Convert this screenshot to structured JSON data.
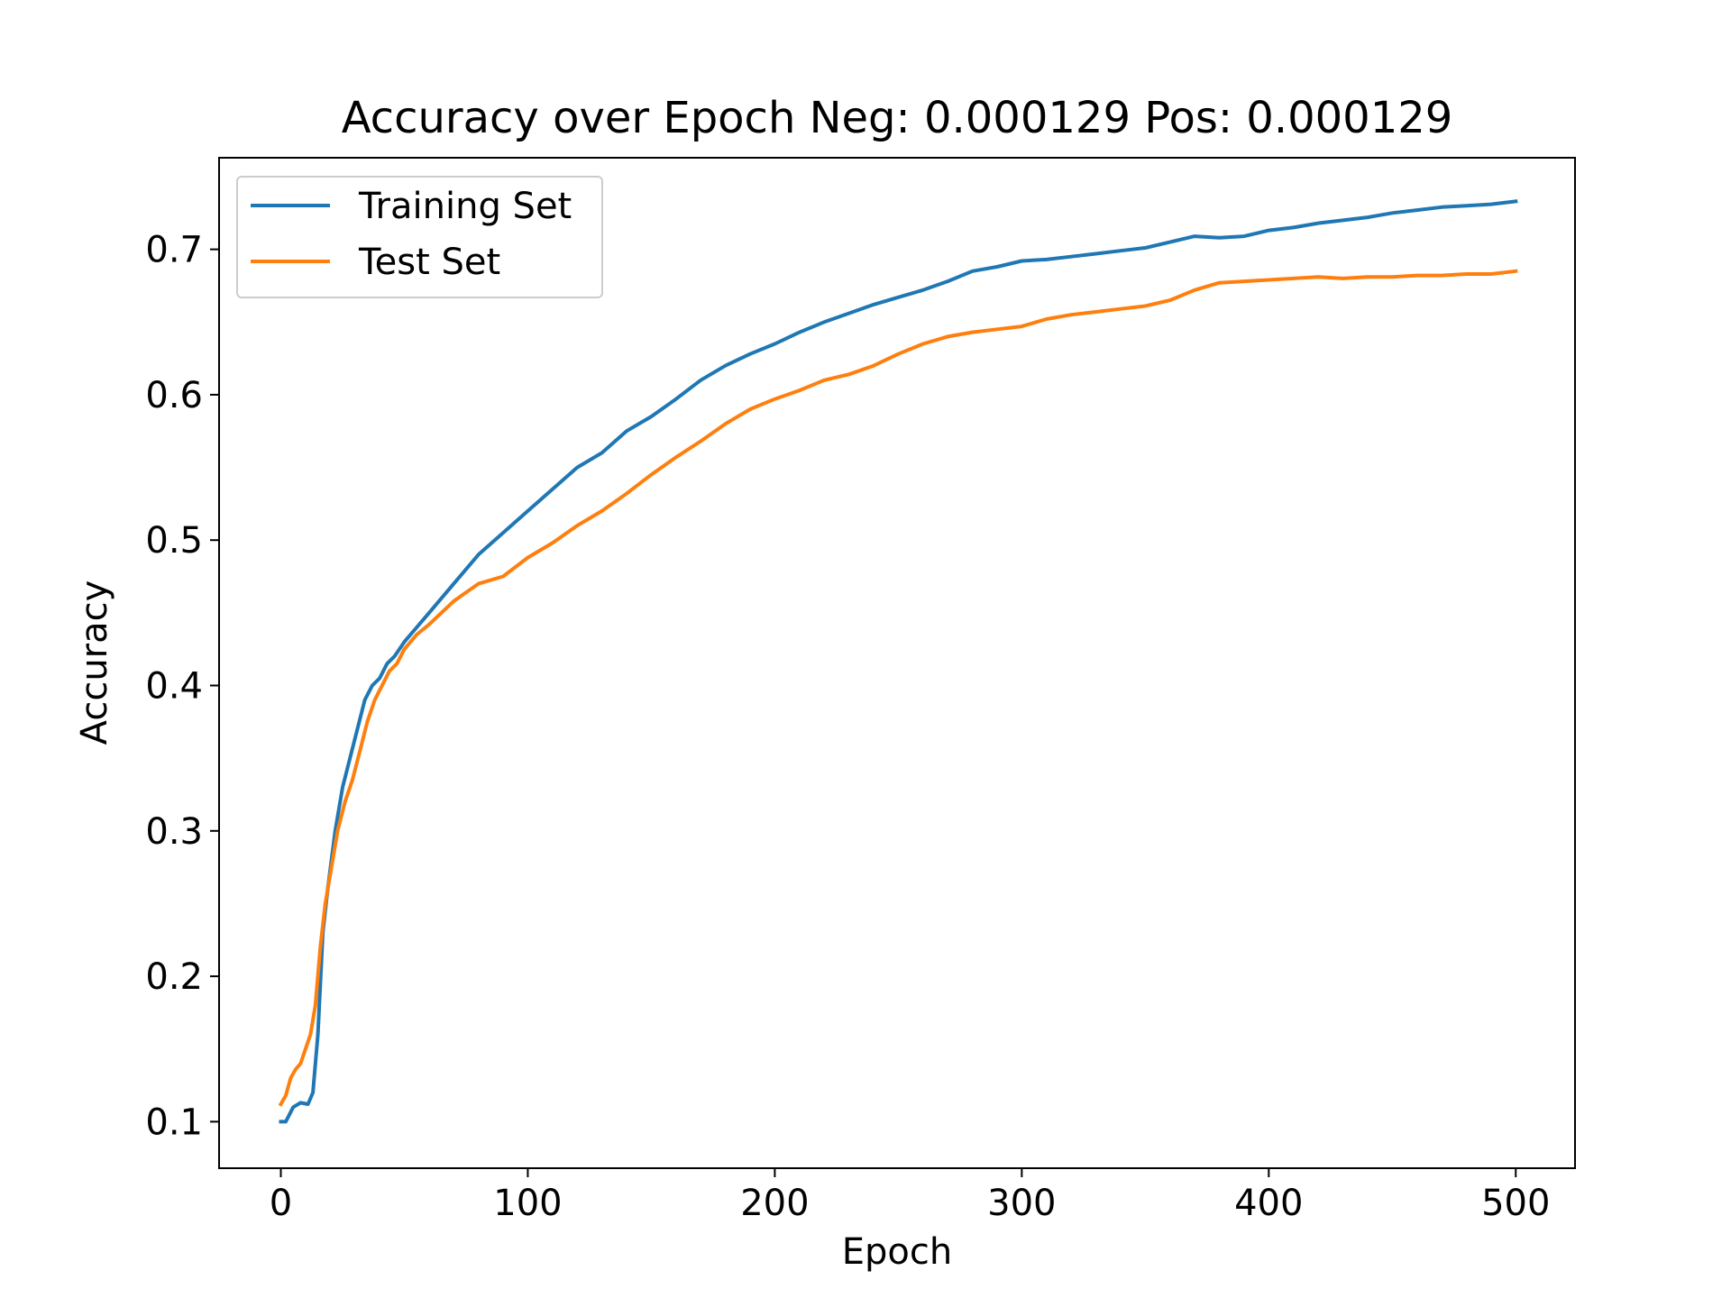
{
  "chart_data": {
    "type": "line",
    "title": "Accuracy over Epoch Neg: 0.000129 Pos: 0.000129",
    "xlabel": "Epoch",
    "ylabel": "Accuracy",
    "xlim": [
      -25,
      524
    ],
    "ylim": [
      0.068,
      0.763
    ],
    "x_ticks": [
      0,
      100,
      200,
      300,
      400,
      500
    ],
    "x_tick_labels": [
      "0",
      "100",
      "200",
      "300",
      "400",
      "500"
    ],
    "y_ticks": [
      0.1,
      0.2,
      0.3,
      0.4,
      0.5,
      0.6,
      0.7
    ],
    "y_tick_labels": [
      "0.1",
      "0.2",
      "0.3",
      "0.4",
      "0.5",
      "0.6",
      "0.7"
    ],
    "grid": false,
    "legend_position": "upper-left",
    "series": [
      {
        "name": "Training Set",
        "color": "#1f77b4",
        "x": [
          0,
          2,
          5,
          8,
          11,
          13,
          15,
          17,
          19,
          22,
          25,
          28,
          31,
          34,
          37,
          40,
          43,
          46,
          50,
          55,
          60,
          70,
          80,
          90,
          100,
          110,
          120,
          130,
          140,
          150,
          160,
          170,
          180,
          190,
          200,
          210,
          220,
          230,
          240,
          250,
          260,
          270,
          280,
          290,
          300,
          310,
          320,
          330,
          340,
          350,
          360,
          370,
          380,
          390,
          400,
          410,
          420,
          430,
          440,
          450,
          460,
          470,
          480,
          490,
          500
        ],
        "y": [
          0.1,
          0.1,
          0.11,
          0.113,
          0.112,
          0.12,
          0.16,
          0.23,
          0.26,
          0.3,
          0.33,
          0.35,
          0.37,
          0.39,
          0.4,
          0.405,
          0.415,
          0.42,
          0.43,
          0.44,
          0.45,
          0.47,
          0.49,
          0.505,
          0.52,
          0.535,
          0.55,
          0.56,
          0.575,
          0.585,
          0.597,
          0.61,
          0.62,
          0.628,
          0.635,
          0.643,
          0.65,
          0.656,
          0.662,
          0.667,
          0.672,
          0.678,
          0.685,
          0.688,
          0.692,
          0.693,
          0.695,
          0.697,
          0.699,
          0.701,
          0.705,
          0.709,
          0.708,
          0.709,
          0.713,
          0.715,
          0.718,
          0.72,
          0.722,
          0.725,
          0.727,
          0.729,
          0.73,
          0.731,
          0.733
        ]
      },
      {
        "name": "Test Set",
        "color": "#ff7f0e",
        "x": [
          0,
          2,
          4,
          6,
          8,
          10,
          12,
          14,
          16,
          18,
          20,
          23,
          26,
          29,
          32,
          35,
          38,
          41,
          44,
          47,
          50,
          55,
          60,
          70,
          80,
          90,
          100,
          110,
          120,
          130,
          140,
          150,
          160,
          170,
          180,
          190,
          200,
          210,
          220,
          230,
          240,
          250,
          260,
          270,
          280,
          290,
          300,
          310,
          320,
          330,
          340,
          350,
          360,
          370,
          380,
          390,
          400,
          410,
          420,
          430,
          440,
          450,
          460,
          470,
          480,
          490,
          500
        ],
        "y": [
          0.112,
          0.118,
          0.13,
          0.136,
          0.14,
          0.15,
          0.16,
          0.18,
          0.22,
          0.25,
          0.27,
          0.3,
          0.32,
          0.335,
          0.355,
          0.375,
          0.39,
          0.4,
          0.41,
          0.415,
          0.425,
          0.435,
          0.442,
          0.458,
          0.47,
          0.475,
          0.488,
          0.498,
          0.51,
          0.52,
          0.532,
          0.545,
          0.557,
          0.568,
          0.58,
          0.59,
          0.597,
          0.603,
          0.61,
          0.614,
          0.62,
          0.628,
          0.635,
          0.64,
          0.643,
          0.645,
          0.647,
          0.652,
          0.655,
          0.657,
          0.659,
          0.661,
          0.665,
          0.672,
          0.677,
          0.678,
          0.679,
          0.68,
          0.681,
          0.68,
          0.681,
          0.681,
          0.682,
          0.682,
          0.683,
          0.683,
          0.685
        ]
      }
    ]
  }
}
